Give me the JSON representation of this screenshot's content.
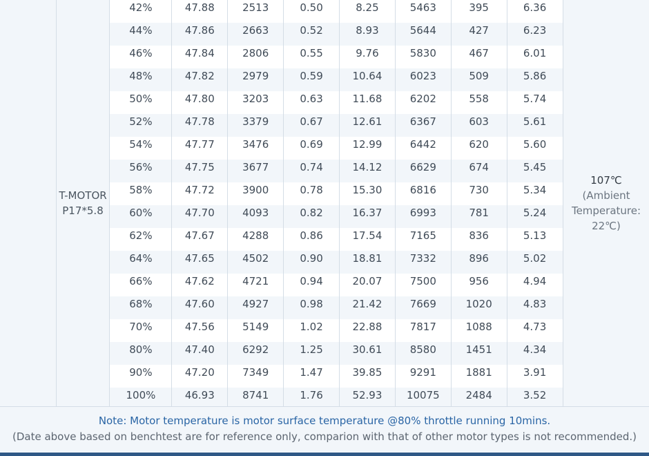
{
  "model": {
    "line1": "T-MOTOR",
    "line2": "P17*5.8"
  },
  "temperature": {
    "value": "107℃",
    "line2": "(Ambient",
    "line3": "Temperature:",
    "line4": "22℃)"
  },
  "rows": [
    [
      "42%",
      "47.88",
      "2513",
      "0.50",
      "8.25",
      "5463",
      "395",
      "6.36"
    ],
    [
      "44%",
      "47.86",
      "2663",
      "0.52",
      "8.93",
      "5644",
      "427",
      "6.23"
    ],
    [
      "46%",
      "47.84",
      "2806",
      "0.55",
      "9.76",
      "5830",
      "467",
      "6.01"
    ],
    [
      "48%",
      "47.82",
      "2979",
      "0.59",
      "10.64",
      "6023",
      "509",
      "5.86"
    ],
    [
      "50%",
      "47.80",
      "3203",
      "0.63",
      "11.68",
      "6202",
      "558",
      "5.74"
    ],
    [
      "52%",
      "47.78",
      "3379",
      "0.67",
      "12.61",
      "6367",
      "603",
      "5.61"
    ],
    [
      "54%",
      "47.77",
      "3476",
      "0.69",
      "12.99",
      "6442",
      "620",
      "5.60"
    ],
    [
      "56%",
      "47.75",
      "3677",
      "0.74",
      "14.12",
      "6629",
      "674",
      "5.45"
    ],
    [
      "58%",
      "47.72",
      "3900",
      "0.78",
      "15.30",
      "6816",
      "730",
      "5.34"
    ],
    [
      "60%",
      "47.70",
      "4093",
      "0.82",
      "16.37",
      "6993",
      "781",
      "5.24"
    ],
    [
      "62%",
      "47.67",
      "4288",
      "0.86",
      "17.54",
      "7165",
      "836",
      "5.13"
    ],
    [
      "64%",
      "47.65",
      "4502",
      "0.90",
      "18.81",
      "7332",
      "896",
      "5.02"
    ],
    [
      "66%",
      "47.62",
      "4721",
      "0.94",
      "20.07",
      "7500",
      "956",
      "4.94"
    ],
    [
      "68%",
      "47.60",
      "4927",
      "0.98",
      "21.42",
      "7669",
      "1020",
      "4.83"
    ],
    [
      "70%",
      "47.56",
      "5149",
      "1.02",
      "22.88",
      "7817",
      "1088",
      "4.73"
    ],
    [
      "80%",
      "47.40",
      "6292",
      "1.25",
      "30.61",
      "8580",
      "1451",
      "4.34"
    ],
    [
      "90%",
      "47.20",
      "7349",
      "1.47",
      "39.85",
      "9291",
      "1881",
      "3.91"
    ],
    [
      "100%",
      "46.93",
      "8741",
      "1.76",
      "52.93",
      "10075",
      "2484",
      "3.52"
    ]
  ],
  "footer": {
    "note": "Note: Motor temperature is motor surface temperature @80% throttle running 10mins.",
    "disclaimer": "(Date above based on benchtest are for reference only, comparion with that of other motor types is not recommended.)"
  },
  "colors": {
    "note_text": "#2a65a5",
    "bottom_bar": "#2f5886",
    "stripe": "#f2f6fa",
    "grid_line": "#d4dde6"
  }
}
